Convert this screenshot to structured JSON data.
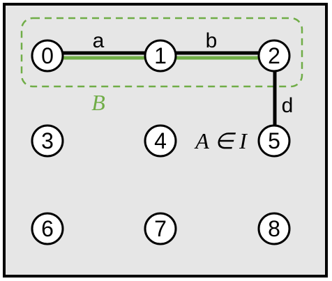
{
  "nodes": [
    {
      "id": "n0",
      "label": "0"
    },
    {
      "id": "n1",
      "label": "1"
    },
    {
      "id": "n2",
      "label": "2"
    },
    {
      "id": "n3",
      "label": "3"
    },
    {
      "id": "n4",
      "label": "4"
    },
    {
      "id": "n5",
      "label": "5"
    },
    {
      "id": "n6",
      "label": "6"
    },
    {
      "id": "n7",
      "label": "7"
    },
    {
      "id": "n8",
      "label": "8"
    }
  ],
  "edges": [
    {
      "from": "0",
      "to": "1",
      "label": "a",
      "highlighted": true
    },
    {
      "from": "1",
      "to": "2",
      "label": "b",
      "highlighted": true
    },
    {
      "from": "2",
      "to": "5",
      "label": "d",
      "highlighted": false
    }
  ],
  "set_B": {
    "label": "B",
    "color": "#70ad47"
  },
  "annotation": "A ∈ I",
  "colors": {
    "background": "#e6e6e6",
    "border": "#000000",
    "node_fill": "#ffffff",
    "highlight": "#70ad47"
  }
}
